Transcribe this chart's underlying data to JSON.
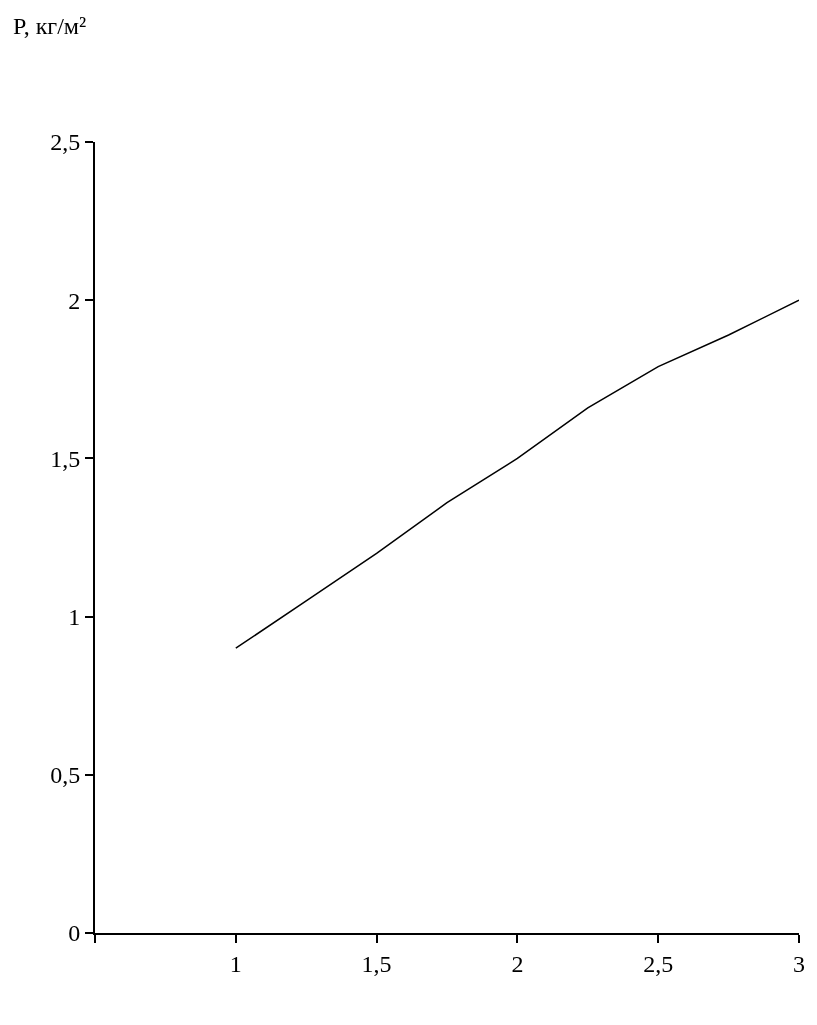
{
  "chart_data": {
    "type": "line",
    "ylabel": "P, кг/м²",
    "x": [
      1,
      1.25,
      1.5,
      1.75,
      2,
      2.25,
      2.5,
      2.75,
      3
    ],
    "series": [
      {
        "color": "#000000",
        "values": [
          0.9,
          1.05,
          1.2,
          1.36,
          1.5,
          1.66,
          1.79,
          1.89,
          2.0
        ]
      }
    ],
    "xlim": [
      0.5,
      3
    ],
    "xticks": [
      {
        "value": 0.5,
        "label": null
      },
      1,
      {
        "value": 1.5,
        "label": "1,5"
      },
      2,
      {
        "value": 2.5,
        "label": "2,5"
      },
      3
    ],
    "ylim": [
      0,
      2.5
    ],
    "yticks": [
      0,
      {
        "value": 0.5,
        "label": "0,5"
      },
      1,
      {
        "value": 1.5,
        "label": "1,5"
      },
      2,
      {
        "value": 2.5,
        "label": "2,5"
      }
    ],
    "marker": "none",
    "line_style": "solid"
  }
}
